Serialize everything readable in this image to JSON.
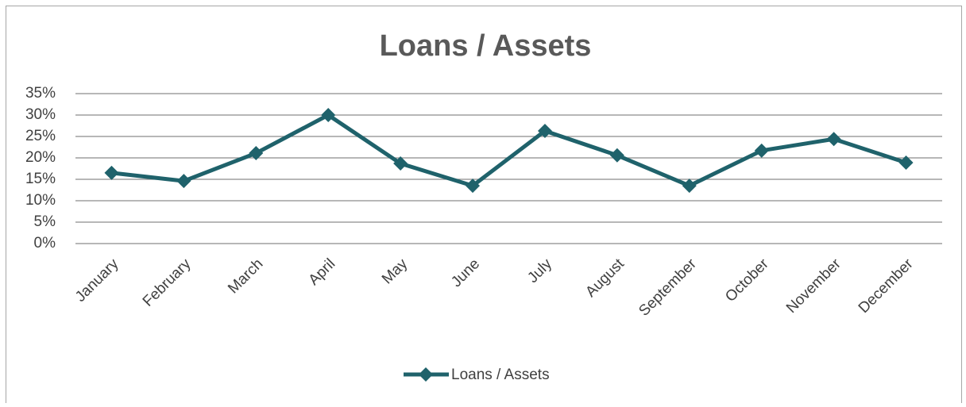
{
  "chart_data": {
    "type": "line",
    "title": "Loans / Assets",
    "categories": [
      "January",
      "February",
      "March",
      "April",
      "May",
      "June",
      "July",
      "August",
      "September",
      "October",
      "November",
      "December"
    ],
    "series": [
      {
        "name": "Loans / Assets",
        "color": "#1f626b",
        "values": [
          16.5,
          14.6,
          21.1,
          30,
          18.7,
          13.5,
          26.3,
          20.6,
          13.5,
          21.7,
          24.4,
          18.9
        ]
      }
    ],
    "ylim": [
      0,
      35
    ],
    "yticks": [
      {
        "value": 0,
        "label": "0%"
      },
      {
        "value": 5,
        "label": "5%"
      },
      {
        "value": 10,
        "label": "10%"
      },
      {
        "value": 15,
        "label": "15%"
      },
      {
        "value": 20,
        "label": "20%"
      },
      {
        "value": 25,
        "label": "25%"
      },
      {
        "value": 30,
        "label": "30%"
      },
      {
        "value": 35,
        "label": "35%"
      }
    ],
    "grid": true,
    "legend": "bottom"
  }
}
